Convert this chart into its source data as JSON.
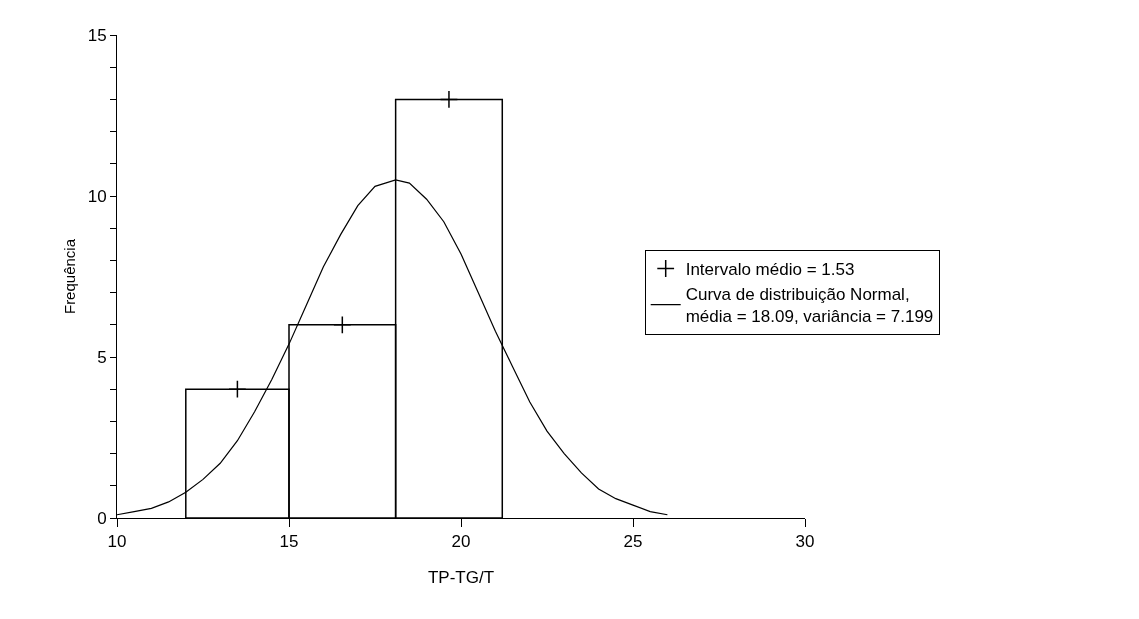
{
  "chart_data": {
    "type": "histogram",
    "xlabel": "TP-TG/T",
    "ylabel": "Frequência",
    "bins": [
      12,
      15,
      18.1,
      21.2
    ],
    "values": [
      4,
      6,
      13
    ],
    "color": "#000000",
    "series": [
      {
        "type": "scatter",
        "name": "Intervalo médio = 1.53",
        "color": "#000000",
        "marker": "cross",
        "x": [
          13.5,
          16.55,
          19.65
        ],
        "values": [
          4,
          6,
          13
        ]
      },
      {
        "type": "line",
        "name": "Curva de distribuição Normal,\nmédia = 18.09, variância = 7.199",
        "color": "#000000",
        "marker": "none",
        "line_style": "solid",
        "x": [
          10,
          10.5,
          11,
          11.5,
          12,
          12.5,
          13,
          13.5,
          14,
          14.5,
          15,
          15.5,
          16,
          16.5,
          17,
          17.5,
          18.1,
          18.5,
          19,
          19.5,
          20,
          20.5,
          21,
          21.5,
          22,
          22.5,
          23,
          23.5,
          24,
          24.5,
          25,
          25.5,
          26
        ],
        "values": [
          0.1,
          0.2,
          0.3,
          0.5,
          0.8,
          1.2,
          1.7,
          2.4,
          3.3,
          4.3,
          5.4,
          6.6,
          7.8,
          8.8,
          9.7,
          10.3,
          10.5,
          10.4,
          9.9,
          9.2,
          8.2,
          7.0,
          5.8,
          4.7,
          3.6,
          2.7,
          2.0,
          1.4,
          0.9,
          0.6,
          0.4,
          0.2,
          0.1
        ]
      }
    ],
    "xlim": [
      10,
      30
    ],
    "xticks": [
      10,
      15,
      20,
      25,
      30
    ],
    "ylim": [
      0,
      15
    ],
    "yticks": [
      0,
      {
        "value": 1,
        "label": null
      },
      {
        "value": 2,
        "label": null
      },
      {
        "value": 3,
        "label": null
      },
      {
        "value": 4,
        "label": null
      },
      5,
      {
        "value": 6,
        "label": null
      },
      {
        "value": 7,
        "label": null
      },
      {
        "value": 8,
        "label": null
      },
      {
        "value": 9,
        "label": null
      },
      10,
      {
        "value": 11,
        "label": null
      },
      {
        "value": 12,
        "label": null
      },
      {
        "value": 13,
        "label": null
      },
      {
        "value": 14,
        "label": null
      },
      15
    ],
    "legend": "right"
  }
}
